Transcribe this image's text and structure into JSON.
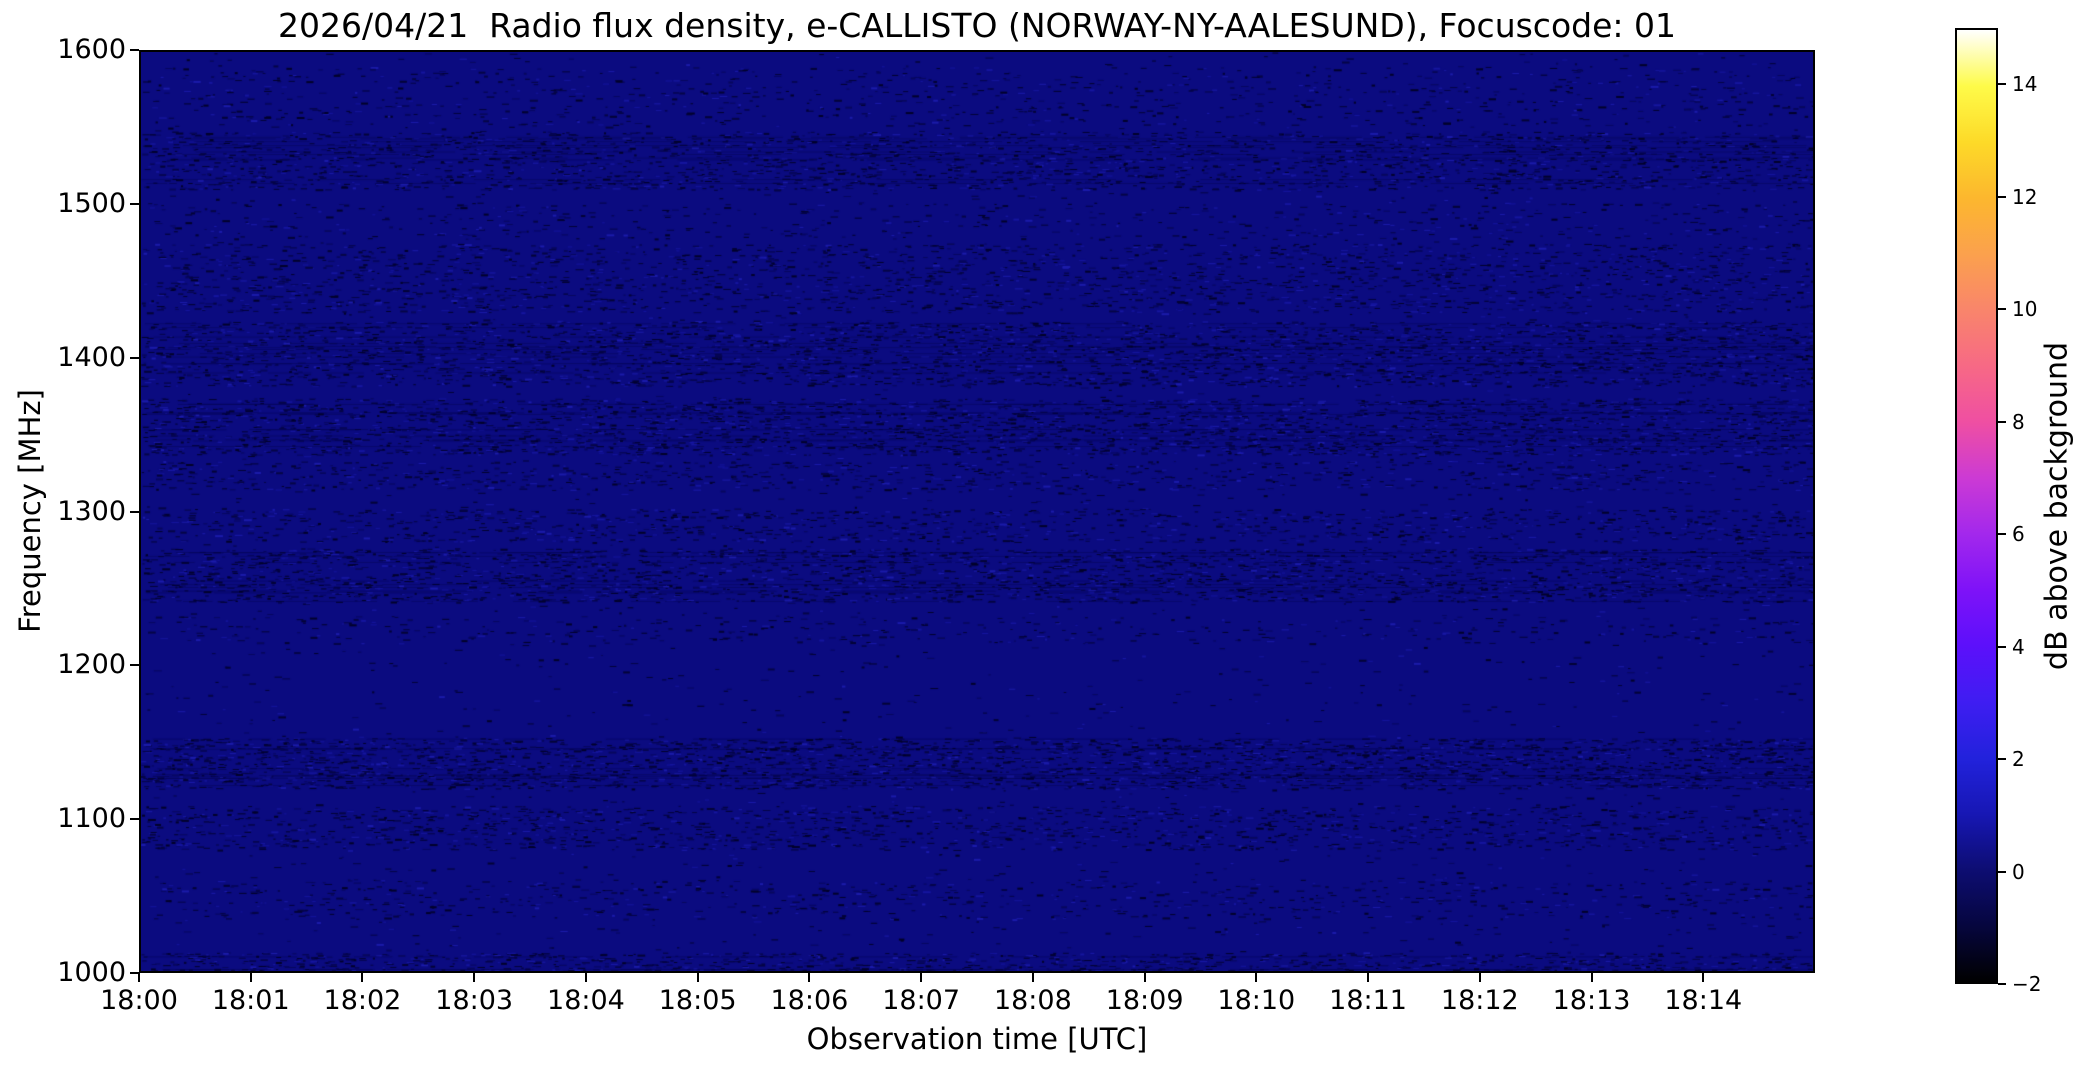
{
  "chart_data": {
    "type": "heatmap",
    "title": "2026/04/21  Radio flux density, e-CALLISTO (NORWAY-NY-AALESUND), Focuscode: 01",
    "xlabel": "Observation time [UTC]",
    "ylabel": "Frequency [MHz]",
    "x_ticks": [
      "18:00",
      "18:01",
      "18:02",
      "18:03",
      "18:04",
      "18:05",
      "18:06",
      "18:07",
      "18:08",
      "18:09",
      "18:10",
      "18:11",
      "18:12",
      "18:13",
      "18:14"
    ],
    "xlim": [
      "18:00",
      "18:15"
    ],
    "x_span_minutes": 15,
    "y_ticks": [
      1600,
      1500,
      1400,
      1300,
      1200,
      1100,
      1000
    ],
    "ylim": [
      1000,
      1600
    ],
    "grid": false,
    "legend": "none",
    "colorbar": {
      "label": "dB above background",
      "tick_labels": [
        "14",
        "12",
        "10",
        "8",
        "6",
        "4",
        "2",
        "0",
        "−2"
      ],
      "tick_values": [
        14,
        12,
        10,
        8,
        6,
        4,
        2,
        0,
        -2
      ],
      "vmin": -2,
      "vmax": 15,
      "gradient_stops": [
        {
          "v": -2,
          "color": "#000000"
        },
        {
          "v": -1,
          "color": "#06063e"
        },
        {
          "v": 0,
          "color": "#0d0d72"
        },
        {
          "v": 1,
          "color": "#1717b4"
        },
        {
          "v": 2,
          "color": "#2222dc"
        },
        {
          "v": 3,
          "color": "#3f1df2"
        },
        {
          "v": 4,
          "color": "#5c10fb"
        },
        {
          "v": 5,
          "color": "#7e12f8"
        },
        {
          "v": 6,
          "color": "#a328ec"
        },
        {
          "v": 7,
          "color": "#cc3ad4"
        },
        {
          "v": 8,
          "color": "#ef4fa2"
        },
        {
          "v": 9,
          "color": "#f76985"
        },
        {
          "v": 10,
          "color": "#f9856b"
        },
        {
          "v": 11,
          "color": "#fba14d"
        },
        {
          "v": 12,
          "color": "#fcb72e"
        },
        {
          "v": 13,
          "color": "#fdda28"
        },
        {
          "v": 14,
          "color": "#fefb49"
        },
        {
          "v": 15,
          "color": "#ffffff"
        }
      ]
    },
    "heatmap": {
      "description": "Quiet solar radio spectrogram: uniform near-0 dB dark navy background with faint darker interference noise bands at fixed frequencies; no bursts visible.",
      "base_color": "#0b0b80",
      "background_level_db": 0,
      "noise_colors_dark": [
        "#07075e",
        "#050546",
        "#030336",
        "#02022a"
      ],
      "noise_colors_bright": [
        "#15159e",
        "#1b1baa"
      ],
      "global_speckle_density": 0.05,
      "noise_bands": [
        {
          "f_hi": 1590,
          "f_lo": 1552,
          "density": 0.2
        },
        {
          "f_hi": 1548,
          "f_lo": 1510,
          "density": 0.6
        },
        {
          "f_hi": 1502,
          "f_lo": 1478,
          "density": 0.18
        },
        {
          "f_hi": 1475,
          "f_lo": 1430,
          "density": 0.45
        },
        {
          "f_hi": 1424,
          "f_lo": 1382,
          "density": 0.7
        },
        {
          "f_hi": 1374,
          "f_lo": 1337,
          "density": 0.75
        },
        {
          "f_hi": 1333,
          "f_lo": 1314,
          "density": 0.4
        },
        {
          "f_hi": 1302,
          "f_lo": 1280,
          "density": 0.45
        },
        {
          "f_hi": 1276,
          "f_lo": 1241,
          "density": 0.7
        },
        {
          "f_hi": 1232,
          "f_lo": 1214,
          "density": 0.2
        },
        {
          "f_hi": 1152,
          "f_lo": 1119,
          "density": 0.85
        },
        {
          "f_hi": 1108,
          "f_lo": 1079,
          "density": 0.5
        },
        {
          "f_hi": 1060,
          "f_lo": 1034,
          "density": 0.25
        },
        {
          "f_hi": 1012,
          "f_lo": 1000,
          "density": 0.8
        }
      ]
    }
  }
}
